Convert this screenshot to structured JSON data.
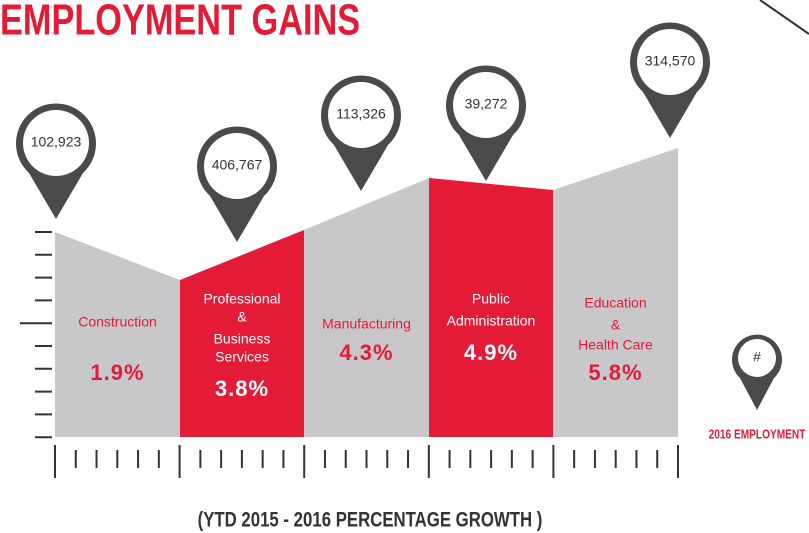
{
  "header": {
    "title": "EMPLOYMENT GAINS"
  },
  "segments": [
    {
      "label": [
        "Construction"
      ],
      "growth": "1.9%",
      "employment": "102,923"
    },
    {
      "label": [
        "Professional",
        "&",
        "Business",
        "Services"
      ],
      "growth": "3.8%",
      "employment": "406,767"
    },
    {
      "label": [
        "Manufacturing"
      ],
      "growth": "4.3%",
      "employment": "113,326"
    },
    {
      "label": [
        "Public",
        "Administration"
      ],
      "growth": "4.9%",
      "employment": "39,272"
    },
    {
      "label": [
        "Education",
        "&",
        "Health Care"
      ],
      "growth": "5.8%",
      "employment": "314,570"
    }
  ],
  "legend": {
    "symbol": "#",
    "label": "2016 EMPLOYMENT"
  },
  "footer": {
    "caption": "(YTD 2015 - 2016 PERCENTAGE GROWTH )"
  }
}
